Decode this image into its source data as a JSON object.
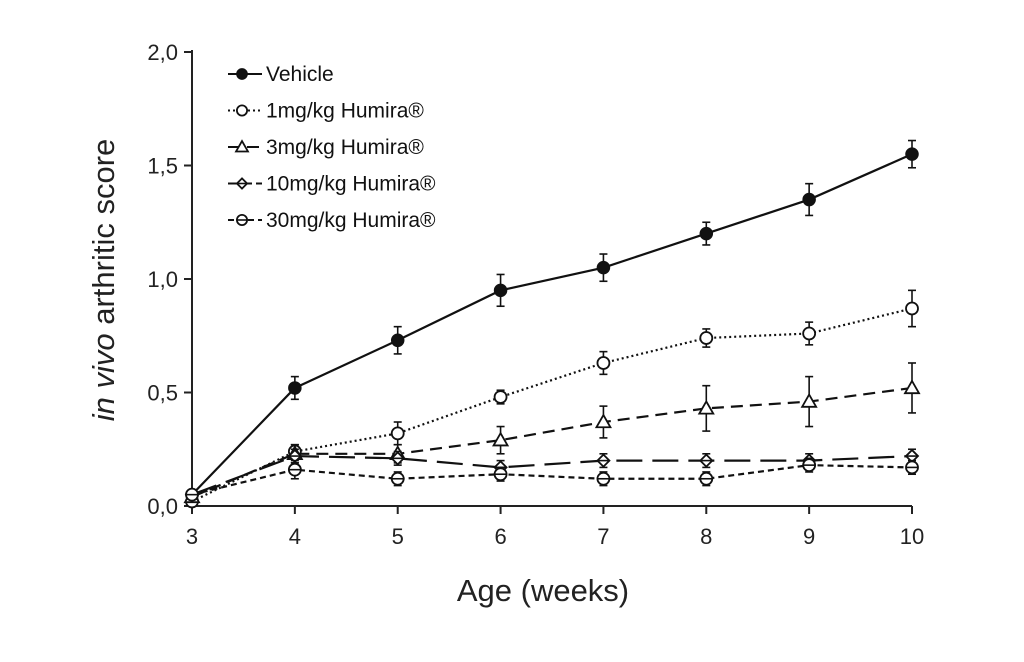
{
  "chart_data": {
    "type": "line",
    "xlabel": "Age (weeks)",
    "ylabel_italic": "in vivo",
    "ylabel_rest": " arthritic score",
    "x": [
      3,
      4,
      5,
      6,
      7,
      8,
      9,
      10
    ],
    "xlim": [
      3,
      10
    ],
    "ylim": [
      0,
      2
    ],
    "x_ticks": [
      "3",
      "4",
      "5",
      "6",
      "7",
      "8",
      "9",
      "10"
    ],
    "y_ticks": [
      "0,0",
      "0,5",
      "1,0",
      "1,5",
      "2,0"
    ],
    "legend_position": "top-left",
    "grid": false,
    "series": [
      {
        "name": "Vehicle",
        "marker": "filled-circle",
        "line_style": "solid",
        "values": [
          0.05,
          0.52,
          0.73,
          0.95,
          1.05,
          1.2,
          1.35,
          1.55
        ],
        "errors": [
          0.02,
          0.05,
          0.06,
          0.07,
          0.06,
          0.05,
          0.07,
          0.06
        ]
      },
      {
        "name": "1mg/kg Humira®",
        "marker": "open-circle",
        "line_style": "dotted",
        "values": [
          0.02,
          0.24,
          0.32,
          0.48,
          0.63,
          0.74,
          0.76,
          0.87
        ],
        "errors": [
          0.01,
          0.03,
          0.05,
          0.03,
          0.05,
          0.04,
          0.05,
          0.08
        ]
      },
      {
        "name": "3mg/kg Humira®",
        "marker": "open-triangle",
        "line_style": "dashed",
        "values": [
          0.04,
          0.23,
          0.23,
          0.29,
          0.37,
          0.43,
          0.46,
          0.52
        ],
        "errors": [
          0.01,
          0.04,
          0.04,
          0.06,
          0.07,
          0.1,
          0.11,
          0.11
        ]
      },
      {
        "name": "10mg/kg Humira®",
        "marker": "diamond",
        "line_style": "long-dash",
        "values": [
          0.05,
          0.22,
          0.21,
          0.17,
          0.2,
          0.2,
          0.2,
          0.22
        ],
        "errors": [
          0.01,
          0.03,
          0.03,
          0.03,
          0.03,
          0.03,
          0.03,
          0.03
        ]
      },
      {
        "name": "30mg/kg Humira®",
        "marker": "crossed-circle",
        "line_style": "short-dash",
        "values": [
          0.05,
          0.16,
          0.12,
          0.14,
          0.12,
          0.12,
          0.18,
          0.17
        ],
        "errors": [
          0.01,
          0.04,
          0.03,
          0.03,
          0.03,
          0.03,
          0.03,
          0.03
        ]
      }
    ],
    "colors": {
      "ink": "#111111",
      "axis": "#222222",
      "background": "#ffffff"
    }
  }
}
